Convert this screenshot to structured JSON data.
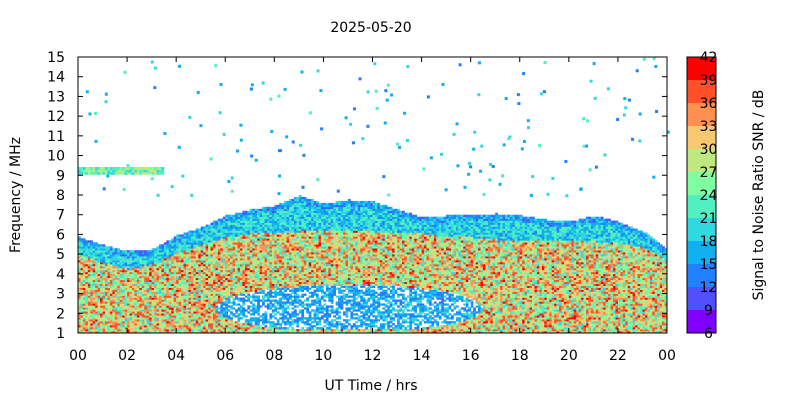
{
  "chart_data": {
    "type": "heatmap",
    "title": "2025-05-20",
    "xlabel": "UT Time / hrs",
    "ylabel": "Frequency / MHz",
    "colorbar_label": "Signal to Noise Ratio SNR / dB",
    "xlim": [
      0,
      24
    ],
    "ylim": [
      1,
      15
    ],
    "x_tick_labels": [
      "00",
      "02",
      "04",
      "06",
      "08",
      "10",
      "12",
      "14",
      "16",
      "18",
      "20",
      "22",
      "00"
    ],
    "y_ticks": [
      "1",
      "2",
      "3",
      "4",
      "5",
      "6",
      "7",
      "8",
      "9",
      "10",
      "11",
      "12",
      "13",
      "14",
      "15"
    ],
    "colorbar_ticks": [
      "6",
      "9",
      "12",
      "15",
      "18",
      "21",
      "24",
      "27",
      "30",
      "33",
      "36",
      "39",
      "42"
    ],
    "colorbar_colors": [
      "#8000ff",
      "#5050ff",
      "#2080ff",
      "#10b0f0",
      "#30d8e0",
      "#50f0c0",
      "#80ffa0",
      "#c0e880",
      "#f8c870",
      "#ff9050",
      "#ff5028",
      "#ff0000"
    ],
    "grid": false,
    "profile": {
      "hours": [
        0,
        1,
        2,
        3,
        4,
        5,
        6,
        7,
        8,
        9,
        10,
        11,
        12,
        13,
        14,
        15,
        16,
        17,
        18,
        19,
        20,
        21,
        22,
        23,
        24
      ],
      "upper_edge_mhz": [
        5.8,
        5.4,
        5.1,
        5.2,
        5.9,
        6.3,
        6.9,
        7.2,
        7.4,
        7.9,
        7.5,
        7.7,
        7.6,
        7.2,
        6.8,
        6.9,
        6.9,
        7.0,
        6.9,
        6.7,
        6.6,
        6.9,
        6.6,
        6.1,
        5.2
      ],
      "strong_top_mhz": [
        4.9,
        4.5,
        4.2,
        4.4,
        5.0,
        5.4,
        5.8,
        6.0,
        6.0,
        6.1,
        6.1,
        6.1,
        6.1,
        6.0,
        6.0,
        5.8,
        5.8,
        5.7,
        5.6,
        5.6,
        5.6,
        5.6,
        5.5,
        5.3,
        4.6
      ]
    },
    "es_layer": {
      "start_hour": 0.0,
      "end_hour": 3.5,
      "freq_mhz": 9.3
    }
  }
}
